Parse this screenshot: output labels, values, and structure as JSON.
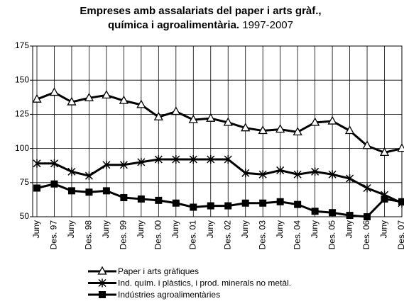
{
  "chart_data": {
    "type": "line",
    "title": "Empreses amb assalariats del paper i arts gràf., química i agroalimentària.",
    "subtitle": "1997-2007",
    "categories": [
      "Juny",
      "Des. 97",
      "Juny",
      "Des. 98",
      "Juny",
      "Des. 99",
      "Juny",
      "Des. 00",
      "Juny",
      "Des. 01",
      "Juny",
      "Des. 02",
      "Juny",
      "Des. 03",
      "Juny",
      "Des. 04",
      "Juny",
      "Des. 05",
      "Juny",
      "Des. 06",
      "Juny",
      "Des. 07"
    ],
    "series": [
      {
        "name": "Paper i arts gràfiques",
        "color": "#000000",
        "marker": "triangle",
        "values": [
          136,
          141,
          134,
          137,
          139,
          135,
          132,
          123,
          127,
          121,
          122,
          119,
          115,
          113,
          114,
          112,
          119,
          120,
          113,
          102,
          97,
          100
        ]
      },
      {
        "name": "Ind. quím. i plàstics, i prod. minerals no metàl.",
        "color": "#000000",
        "marker": "star",
        "values": [
          89,
          89,
          83,
          80,
          88,
          88,
          90,
          92,
          92,
          92,
          92,
          92,
          82,
          81,
          84,
          81,
          83,
          81,
          78,
          71,
          66,
          60
        ]
      },
      {
        "name": "Indústries agroalimentàries",
        "color": "#000000",
        "marker": "square",
        "values": [
          71,
          74,
          69,
          68,
          69,
          64,
          63,
          62,
          60,
          57,
          58,
          58,
          60,
          60,
          61,
          59,
          54,
          53,
          51,
          50,
          63,
          61
        ]
      }
    ],
    "ylim": [
      50,
      175
    ],
    "yticks": [
      50,
      75,
      100,
      125,
      150,
      175
    ],
    "grid": true
  }
}
